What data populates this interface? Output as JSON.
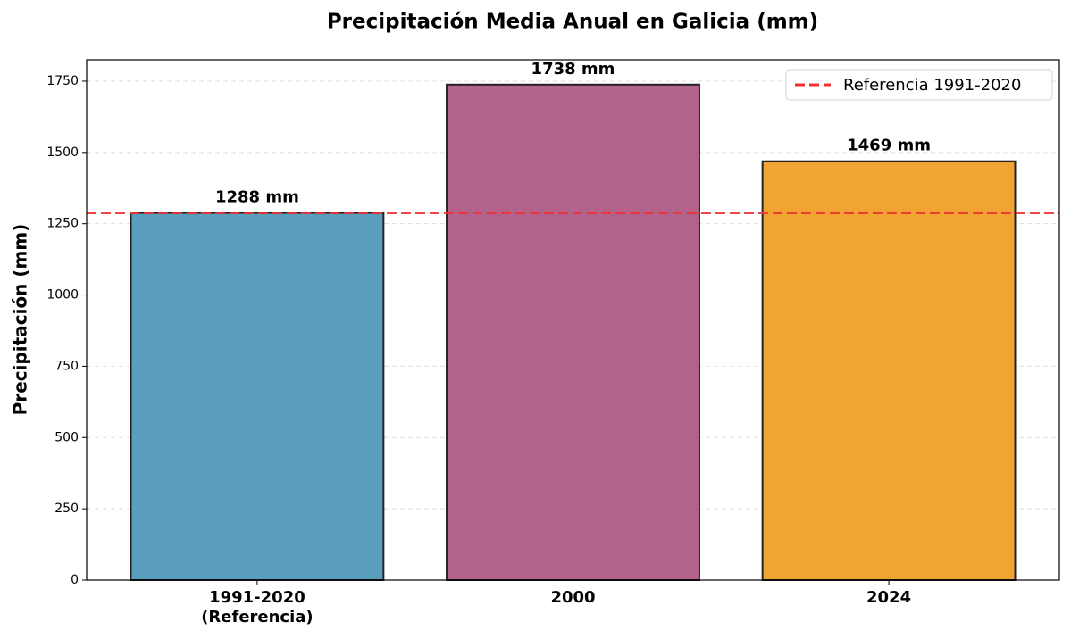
{
  "chart_data": {
    "type": "bar",
    "title": "Precipitación Media Anual en Galicia (mm)",
    "y_label": "Precipitación (mm)",
    "categories": [
      "1991-2020\n(Referencia)",
      "2000",
      "2024"
    ],
    "values": [
      1288,
      1738,
      1469
    ],
    "value_labels": [
      "1288 mm",
      "1738 mm",
      "1469 mm"
    ],
    "colors": [
      "#5a9ebd",
      "#b2628b",
      "#f2a433"
    ],
    "reference_line": {
      "name": "Referencia 1991-2020",
      "value": 1288,
      "color": "#ee3333"
    },
    "ylim": [
      0,
      1825
    ],
    "yticks": [
      0,
      250,
      500,
      750,
      1000,
      1250,
      1500,
      1750
    ],
    "grid": true,
    "legend": "upper right"
  }
}
